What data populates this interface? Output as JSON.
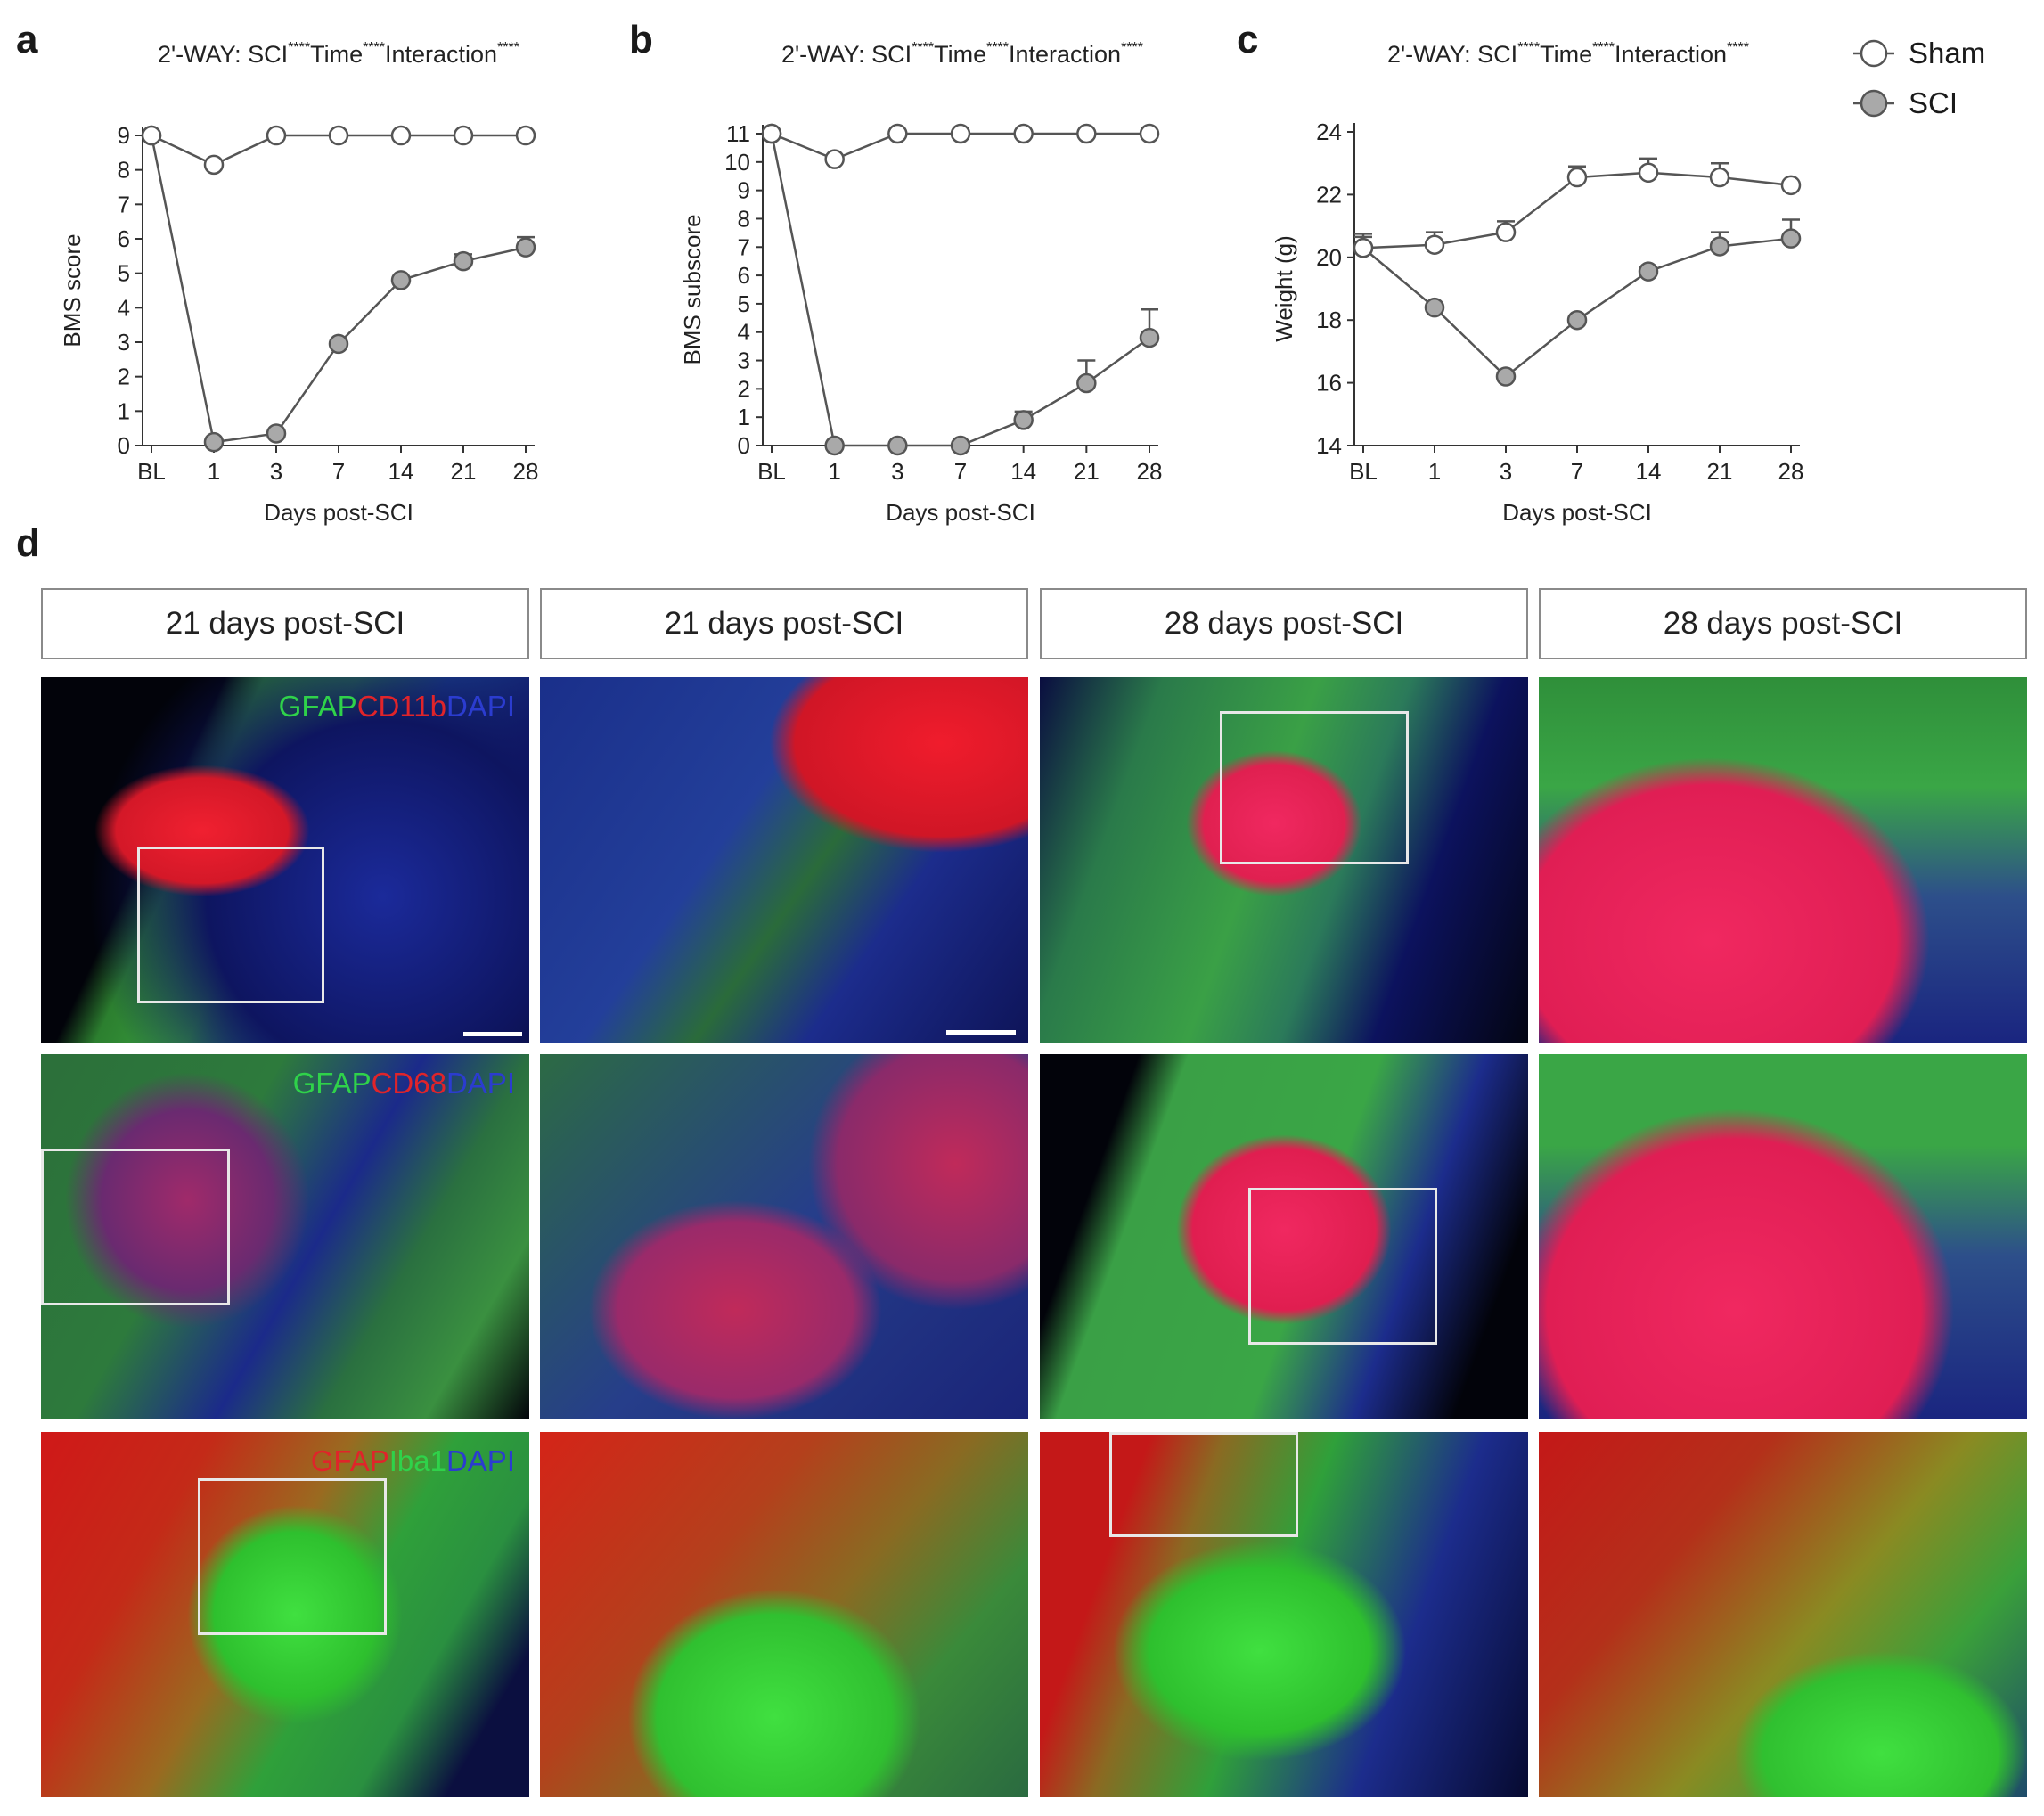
{
  "panels": {
    "a": "a",
    "b": "b",
    "c": "c",
    "d": "d"
  },
  "legend": {
    "sham": "Sham",
    "sci": "SCI"
  },
  "colors": {
    "sham_fill": "#ffffff",
    "sci_fill": "#a9a9a9",
    "line": "#555555"
  },
  "chart_data": [
    {
      "type": "line",
      "panel": "a",
      "title": "2'-WAY: SCI****Time****Interaction****",
      "title_parts": {
        "base": "2'-WAY: SCI",
        "s1": "****",
        "t": "Time",
        "s2": "****",
        "i": "Interaction",
        "s3": "****"
      },
      "xlabel": "Days post-SCI",
      "ylabel": "BMS score",
      "categories": [
        "BL",
        "1",
        "3",
        "7",
        "14",
        "21",
        "28"
      ],
      "ylim": [
        0,
        9
      ],
      "yticks": [
        0,
        1,
        2,
        3,
        4,
        5,
        6,
        7,
        8,
        9
      ],
      "series": [
        {
          "name": "Sham",
          "values": [
            9,
            8.15,
            9,
            9,
            9,
            9,
            9
          ],
          "err": [
            0,
            0,
            0,
            0,
            0,
            0,
            0
          ]
        },
        {
          "name": "SCI",
          "values": [
            9,
            0.1,
            0.35,
            2.95,
            4.8,
            5.35,
            5.75
          ],
          "err": [
            0,
            0,
            0,
            0,
            0,
            0.2,
            0.3
          ]
        }
      ]
    },
    {
      "type": "line",
      "panel": "b",
      "title": "2'-WAY: SCI****Time****Interaction****",
      "title_parts": {
        "base": "2'-WAY: SCI",
        "s1": "****",
        "t": "Time",
        "s2": "****",
        "i": "Interaction",
        "s3": "****"
      },
      "xlabel": "Days post-SCI",
      "ylabel": "BMS subscore",
      "categories": [
        "BL",
        "1",
        "3",
        "7",
        "14",
        "21",
        "28"
      ],
      "ylim": [
        0,
        11
      ],
      "yticks": [
        0,
        1,
        2,
        3,
        4,
        5,
        6,
        7,
        8,
        9,
        10,
        11
      ],
      "series": [
        {
          "name": "Sham",
          "values": [
            11,
            10.1,
            11,
            11,
            11,
            11,
            11
          ],
          "err": [
            0,
            0,
            0,
            0,
            0,
            0,
            0
          ]
        },
        {
          "name": "SCI",
          "values": [
            11,
            0,
            0,
            0,
            0.9,
            2.2,
            3.8
          ],
          "err": [
            0,
            0,
            0,
            0,
            0.3,
            0.8,
            1.0
          ]
        }
      ]
    },
    {
      "type": "line",
      "panel": "c",
      "title": "2'-WAY: SCI****Time****Interaction****",
      "title_parts": {
        "base": "2'-WAY: SCI",
        "s1": "****",
        "t": "Time",
        "s2": "****",
        "i": "Interaction",
        "s3": "****"
      },
      "xlabel": "Days post-SCI",
      "ylabel": "Weight (g)",
      "categories": [
        "BL",
        "1",
        "3",
        "7",
        "14",
        "21",
        "28"
      ],
      "ylim": [
        14,
        24
      ],
      "yticks": [
        14,
        16,
        18,
        20,
        22,
        24
      ],
      "series": [
        {
          "name": "Sham",
          "values": [
            20.3,
            20.4,
            20.8,
            22.55,
            22.7,
            22.55,
            22.3
          ],
          "err": [
            0.45,
            0.4,
            0.35,
            0.35,
            0.45,
            0.45,
            0.0
          ]
        },
        {
          "name": "SCI",
          "values": [
            20.3,
            18.4,
            16.2,
            18.0,
            19.55,
            20.35,
            20.6
          ],
          "err": [
            0.35,
            0.0,
            0.0,
            0.0,
            0.0,
            0.45,
            0.6
          ]
        }
      ]
    }
  ],
  "micrographs": {
    "headers": [
      "21 days post-SCI",
      "21 days post-SCI",
      "28 days post-SCI",
      "28 days post-SCI"
    ],
    "rows": [
      {
        "label_parts": [
          {
            "text": "GFAP",
            "color": "#2fd24a"
          },
          {
            "text": "CD11b",
            "color": "#e0242a"
          },
          {
            "text": "DAPI",
            "color": "#2b3ccf"
          }
        ]
      },
      {
        "label_parts": [
          {
            "text": "GFAP",
            "color": "#2fd24a"
          },
          {
            "text": "CD68",
            "color": "#e0242a"
          },
          {
            "text": "DAPI",
            "color": "#2b3ccf"
          }
        ]
      },
      {
        "label_parts": [
          {
            "text": "GFAP",
            "color": "#e0242a"
          },
          {
            "text": "Iba1",
            "color": "#2fd24a"
          },
          {
            "text": "DAPI",
            "color": "#2b3ccf"
          }
        ]
      }
    ]
  }
}
